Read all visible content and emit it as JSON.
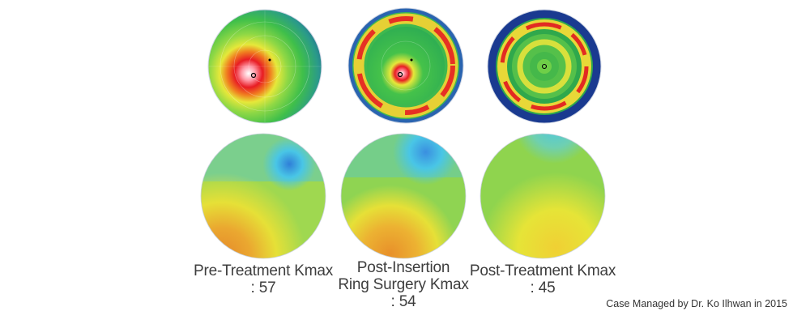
{
  "maps": [
    {
      "label_lines": [
        "Pre-Treatment Kmax",
        ": 57"
      ]
    },
    {
      "label_lines": [
        "Post-Insertion",
        "Ring Surgery Kmax",
        ": 54"
      ]
    },
    {
      "label_lines": [
        "Post-Treatment Kmax",
        ": 45"
      ]
    }
  ],
  "credit": "Case Managed by Dr. Ko Ilhwan in 2015",
  "colors": {
    "topo_dark_blue": "#1f3f9a",
    "topo_green": "#3fbf4a",
    "topo_yellow": "#e8e83a",
    "topo_red": "#e02020",
    "elev_cyan": "#49c6e6",
    "elev_yellow": "#e6e437",
    "elev_orange": "#e8902a"
  }
}
